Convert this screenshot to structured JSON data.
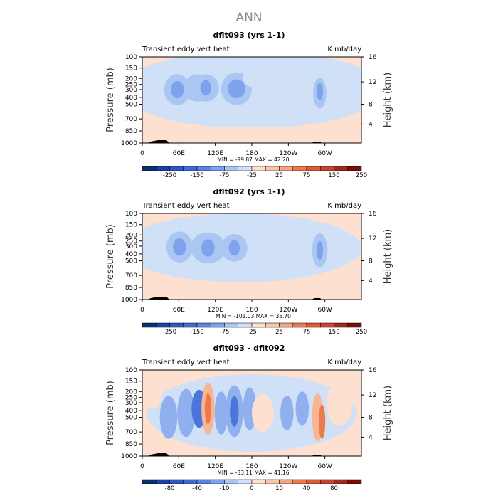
{
  "figure_title": "ANN",
  "colors": {
    "plus_25": "#fde0cf",
    "minus_25": "#cfe0f7",
    "minus_75": "#aac6f2",
    "minus_150": "#7fa2ec",
    "minus_250": "#3f6ad9",
    "diff_plus_10": "#f7b593",
    "diff_plus_40": "#ec7a4c",
    "diff_minus_10": "#90afee",
    "diff_minus_40": "#4b75db",
    "terrain": "#000000"
  },
  "chart_data": [
    {
      "type": "contour",
      "title": "dflt093 (yrs 1-1)",
      "subtitle_left": "Transient eddy vert heat",
      "subtitle_right": "K mb/day",
      "ylabel": "Pressure (mb)",
      "ylabel_right": "Height (km)",
      "x_ticks": [
        "0",
        "60E",
        "120E",
        "180",
        "120W",
        "60W"
      ],
      "y_ticks": [
        "100",
        "150",
        "200",
        "250",
        "300",
        "400",
        "500",
        "700",
        "850",
        "1000"
      ],
      "y_right_ticks": [
        "4",
        "8",
        "12",
        "16"
      ],
      "stats": "MIN = -99.87   MAX =  42.20",
      "colorbar_labels": [
        "-250",
        "-150",
        "-75",
        "-25",
        "25",
        "75",
        "150",
        "250"
      ],
      "colorbar_colors": [
        "#08306b",
        "#1c3faa",
        "#2e55c9",
        "#3f6ad9",
        "#5a82e3",
        "#7fa2ec",
        "#aac6f2",
        "#cfe0f7",
        "#fde0cf",
        "#f9c4a8",
        "#f4a582",
        "#ec7a4c",
        "#dc5a35",
        "#c8452c",
        "#a4281e",
        "#7a0c08"
      ]
    },
    {
      "type": "contour",
      "title": "dflt092 (yrs 1-1)",
      "subtitle_left": "Transient eddy vert heat",
      "subtitle_right": "K mb/day",
      "ylabel": "Pressure (mb)",
      "ylabel_right": "Height (km)",
      "x_ticks": [
        "0",
        "60E",
        "120E",
        "180",
        "120W",
        "60W"
      ],
      "y_ticks": [
        "100",
        "150",
        "200",
        "250",
        "300",
        "400",
        "500",
        "700",
        "850",
        "1000"
      ],
      "y_right_ticks": [
        "4",
        "8",
        "12",
        "16"
      ],
      "stats": "MIN = -101.03   MAX =  35.70",
      "colorbar_labels": [
        "-250",
        "-150",
        "-75",
        "-25",
        "25",
        "75",
        "150",
        "250"
      ],
      "colorbar_colors": [
        "#08306b",
        "#1c3faa",
        "#2e55c9",
        "#3f6ad9",
        "#5a82e3",
        "#7fa2ec",
        "#aac6f2",
        "#cfe0f7",
        "#fde0cf",
        "#f9c4a8",
        "#f4a582",
        "#ec7a4c",
        "#dc5a35",
        "#c8452c",
        "#a4281e",
        "#7a0c08"
      ]
    },
    {
      "type": "contour",
      "title": "dflt093 - dflt092",
      "subtitle_left": "Transient eddy vert heat",
      "subtitle_right": "K mb/day",
      "ylabel": "Pressure (mb)",
      "ylabel_right": "Height (km)",
      "x_ticks": [
        "0",
        "60E",
        "120E",
        "180",
        "120W",
        "60W"
      ],
      "y_ticks": [
        "100",
        "150",
        "200",
        "250",
        "300",
        "400",
        "500",
        "700",
        "850",
        "1000"
      ],
      "y_right_ticks": [
        "4",
        "8",
        "12",
        "16"
      ],
      "stats": "MIN = -33.11   MAX =  41.16",
      "colorbar_labels": [
        "-80",
        "-40",
        "-10",
        "0",
        "10",
        "40",
        "80"
      ],
      "colorbar_colors": [
        "#08306b",
        "#1c3faa",
        "#2e55c9",
        "#3f6ad9",
        "#5a82e3",
        "#7fa2ec",
        "#aac6f2",
        "#cfe0f7",
        "#fde0cf",
        "#f9c4a8",
        "#f4a582",
        "#ec7a4c",
        "#dc5a35",
        "#c8452c",
        "#a4281e",
        "#7a0c08"
      ]
    }
  ]
}
